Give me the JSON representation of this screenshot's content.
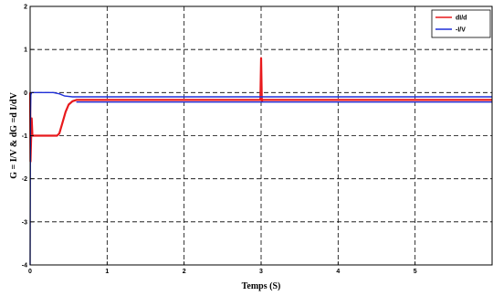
{
  "chart_data": {
    "type": "line",
    "title": "",
    "xlabel": "Temps (S)",
    "ylabel": "G = I/V  &  dG =d I/dV",
    "xlim": [
      0,
      6
    ],
    "ylim": [
      -4,
      2
    ],
    "xticks": [
      "0",
      "1",
      "2",
      "3",
      "4",
      "5"
    ],
    "yticks": [
      "2",
      "1",
      "0",
      "-1",
      "-2",
      "-3",
      "-4"
    ],
    "grid": true,
    "grid_style": "dashed",
    "legend_position": "top-right",
    "series": [
      {
        "name": "dI/d",
        "color": "#e8191c",
        "points": [
          [
            0,
            0.0
          ],
          [
            0.005,
            -1.6
          ],
          [
            0.02,
            -0.6
          ],
          [
            0.03,
            -1.0
          ],
          [
            0.06,
            -1.0
          ],
          [
            0.2,
            -1.0
          ],
          [
            0.35,
            -1.0
          ],
          [
            0.38,
            -0.95
          ],
          [
            0.42,
            -0.7
          ],
          [
            0.46,
            -0.45
          ],
          [
            0.5,
            -0.28
          ],
          [
            0.55,
            -0.2
          ],
          [
            0.6,
            -0.17
          ],
          [
            1.0,
            -0.17
          ],
          [
            2.0,
            -0.17
          ],
          [
            2.99,
            -0.17
          ],
          [
            3.0,
            0.8
          ],
          [
            3.01,
            -0.2
          ],
          [
            3.02,
            -0.17
          ],
          [
            6.0,
            -0.17
          ]
        ]
      },
      {
        "name": "-I/V",
        "color": "#1f2fd8",
        "points": [
          [
            0,
            -4.0
          ],
          [
            0.005,
            -0.5
          ],
          [
            0.01,
            -0.05
          ],
          [
            0.02,
            0.0
          ],
          [
            0.3,
            0.0
          ],
          [
            0.38,
            -0.03
          ],
          [
            0.45,
            -0.08
          ],
          [
            0.55,
            -0.1
          ],
          [
            3.0,
            -0.1
          ],
          [
            6.0,
            -0.1
          ]
        ]
      },
      {
        "name": "",
        "color": "#1f2fd8",
        "points": [
          [
            0.6,
            -0.22
          ],
          [
            6.0,
            -0.22
          ]
        ]
      }
    ]
  }
}
